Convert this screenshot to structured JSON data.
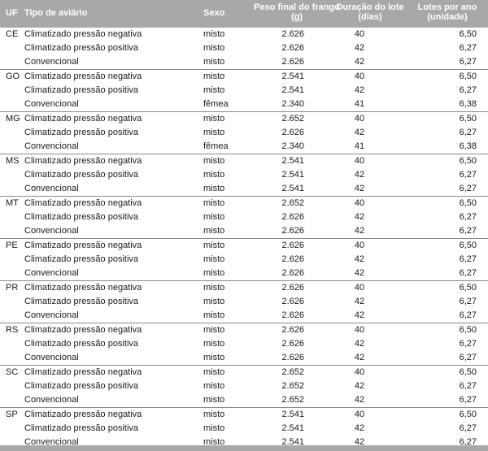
{
  "header": {
    "uf": "UF",
    "tipo": "Tipo de aviário",
    "sexo": "Sexo",
    "peso": [
      "Peso final do frango",
      "(g)"
    ],
    "duracao": [
      "Duração do lote",
      "(dias)"
    ],
    "lotes": [
      "Lotes por ano",
      "(unidade)"
    ]
  },
  "groups": [
    {
      "uf": "CE",
      "rows": [
        {
          "tipo": "Climatizado pressão negativa",
          "sexo": "misto",
          "peso": "2.626",
          "duracao": "40",
          "lotes": "6,50"
        },
        {
          "tipo": "Climatizado pressão positiva",
          "sexo": "misto",
          "peso": "2.626",
          "duracao": "42",
          "lotes": "6,27"
        },
        {
          "tipo": "Convencional",
          "sexo": "misto",
          "peso": "2.626",
          "duracao": "42",
          "lotes": "6,27"
        }
      ]
    },
    {
      "uf": "GO",
      "rows": [
        {
          "tipo": "Climatizado pressão negativa",
          "sexo": "misto",
          "peso": "2.541",
          "duracao": "40",
          "lotes": "6,50"
        },
        {
          "tipo": "Climatizado pressão positiva",
          "sexo": "misto",
          "peso": "2.541",
          "duracao": "42",
          "lotes": "6,27"
        },
        {
          "tipo": "Convencional",
          "sexo": "fêmea",
          "peso": "2.340",
          "duracao": "41",
          "lotes": "6,38"
        }
      ]
    },
    {
      "uf": "MG",
      "rows": [
        {
          "tipo": "Climatizado pressão negativa",
          "sexo": "misto",
          "peso": "2.652",
          "duracao": "40",
          "lotes": "6,50"
        },
        {
          "tipo": "Climatizado pressão positiva",
          "sexo": "misto",
          "peso": "2.626",
          "duracao": "42",
          "lotes": "6,27"
        },
        {
          "tipo": "Convencional",
          "sexo": "fêmea",
          "peso": "2.340",
          "duracao": "41",
          "lotes": "6,38"
        }
      ]
    },
    {
      "uf": "MS",
      "rows": [
        {
          "tipo": "Climatizado pressão negativa",
          "sexo": "misto",
          "peso": "2.541",
          "duracao": "40",
          "lotes": "6,50"
        },
        {
          "tipo": "Climatizado pressão positiva",
          "sexo": "misto",
          "peso": "2.541",
          "duracao": "42",
          "lotes": "6,27"
        },
        {
          "tipo": "Convencional",
          "sexo": "misto",
          "peso": "2.541",
          "duracao": "42",
          "lotes": "6,27"
        }
      ]
    },
    {
      "uf": "MT",
      "rows": [
        {
          "tipo": "Climatizado pressão negativa",
          "sexo": "misto",
          "peso": "2.652",
          "duracao": "40",
          "lotes": "6,50"
        },
        {
          "tipo": "Climatizado pressão positiva",
          "sexo": "misto",
          "peso": "2.626",
          "duracao": "42",
          "lotes": "6,27"
        },
        {
          "tipo": "Convencional",
          "sexo": "misto",
          "peso": "2.626",
          "duracao": "42",
          "lotes": "6,27"
        }
      ]
    },
    {
      "uf": "PE",
      "rows": [
        {
          "tipo": "Climatizado pressão negativa",
          "sexo": "misto",
          "peso": "2.626",
          "duracao": "40",
          "lotes": "6,50"
        },
        {
          "tipo": "Climatizado pressão positiva",
          "sexo": "misto",
          "peso": "2.626",
          "duracao": "42",
          "lotes": "6,27"
        },
        {
          "tipo": "Convencional",
          "sexo": "misto",
          "peso": "2.626",
          "duracao": "42",
          "lotes": "6,27"
        }
      ]
    },
    {
      "uf": "PR",
      "rows": [
        {
          "tipo": "Climatizado pressão negativa",
          "sexo": "misto",
          "peso": "2.626",
          "duracao": "40",
          "lotes": "6,50"
        },
        {
          "tipo": "Climatizado pressão positiva",
          "sexo": "misto",
          "peso": "2.626",
          "duracao": "42",
          "lotes": "6,27"
        },
        {
          "tipo": "Convencional",
          "sexo": "misto",
          "peso": "2.626",
          "duracao": "42",
          "lotes": "6,27"
        }
      ]
    },
    {
      "uf": "RS",
      "rows": [
        {
          "tipo": "Climatizado pressão negativa",
          "sexo": "misto",
          "peso": "2.626",
          "duracao": "40",
          "lotes": "6,50"
        },
        {
          "tipo": "Climatizado pressão positiva",
          "sexo": "misto",
          "peso": "2.626",
          "duracao": "42",
          "lotes": "6,27"
        },
        {
          "tipo": "Convencional",
          "sexo": "misto",
          "peso": "2.626",
          "duracao": "42",
          "lotes": "6,27"
        }
      ]
    },
    {
      "uf": "SC",
      "rows": [
        {
          "tipo": "Climatizado pressão negativa",
          "sexo": "misto",
          "peso": "2.652",
          "duracao": "40",
          "lotes": "6,50"
        },
        {
          "tipo": "Climatizado pressão positiva",
          "sexo": "misto",
          "peso": "2.652",
          "duracao": "42",
          "lotes": "6,27"
        },
        {
          "tipo": "Convencional",
          "sexo": "misto",
          "peso": "2.652",
          "duracao": "42",
          "lotes": "6,27"
        }
      ]
    },
    {
      "uf": "SP",
      "rows": [
        {
          "tipo": "Climatizado pressão negativa",
          "sexo": "misto",
          "peso": "2.541",
          "duracao": "40",
          "lotes": "6,50"
        },
        {
          "tipo": "Climatizado pressão positiva",
          "sexo": "misto",
          "peso": "2.541",
          "duracao": "42",
          "lotes": "6,27"
        },
        {
          "tipo": "Convencional",
          "sexo": "misto",
          "peso": "2.541",
          "duracao": "42",
          "lotes": "6,27"
        }
      ]
    }
  ]
}
